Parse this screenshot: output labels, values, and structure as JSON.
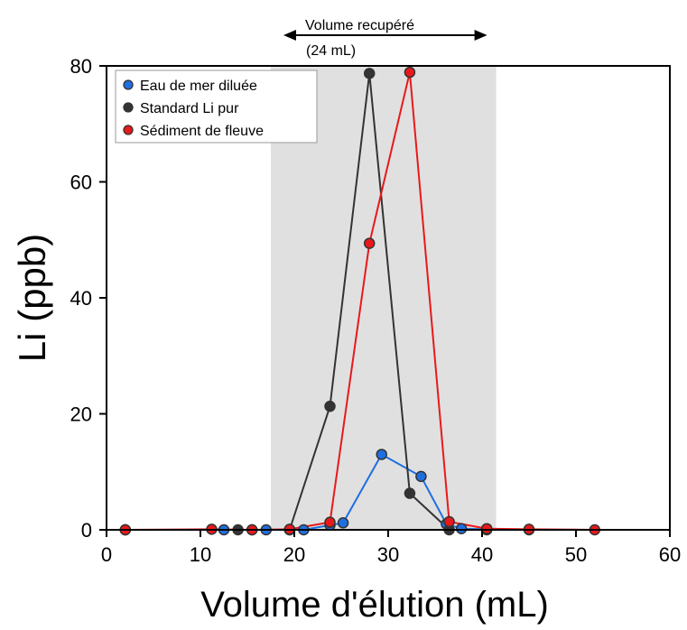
{
  "chart_data": {
    "type": "line",
    "xlabel": "Volume d'élution (mL)",
    "ylabel": "Li (ppb)",
    "xlim": [
      0,
      60
    ],
    "ylim": [
      0,
      80
    ],
    "x_ticks": [
      0,
      10,
      20,
      30,
      40,
      50,
      60
    ],
    "y_ticks": [
      0,
      20,
      40,
      60,
      80
    ],
    "grid": false,
    "legend_position": "top-left",
    "shaded_region": {
      "x": [
        17.5,
        41.5
      ],
      "color": "#e0e0e0"
    },
    "annotation": {
      "line1": "Volume recupéré",
      "line2": "(24 mL)"
    },
    "series": [
      {
        "name": "Eau de mer diluée",
        "color": "#1f6fe0",
        "x": [
          2,
          12.5,
          15.5,
          17,
          19.5,
          21,
          23.8,
          25.2,
          29.3,
          33.5,
          36.2,
          37.8,
          40.5,
          45
        ],
        "y": [
          0,
          0,
          0,
          0,
          0,
          0,
          0.8,
          1.2,
          13,
          9.2,
          1,
          0.2,
          0.1,
          0
        ]
      },
      {
        "name": "Standard Li pur",
        "color": "#333333",
        "x": [
          2,
          14,
          19.5,
          23.8,
          28,
          32.3,
          36.5,
          40.5
        ],
        "y": [
          0,
          0,
          0,
          21.3,
          78.7,
          6.3,
          0,
          0
        ]
      },
      {
        "name": "Sédiment de fleuve",
        "color": "#e8191b",
        "x": [
          2,
          11.2,
          15.5,
          19.5,
          23.8,
          28,
          32.3,
          36.5,
          40.5,
          45,
          52
        ],
        "y": [
          0,
          0.1,
          0,
          0.1,
          1.3,
          49.4,
          78.9,
          1.4,
          0.2,
          0.1,
          0
        ]
      }
    ]
  }
}
